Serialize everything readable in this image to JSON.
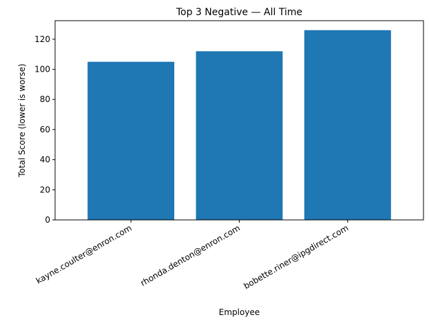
{
  "chart_data": {
    "type": "bar",
    "title": "Top 3 Negative — All Time",
    "xlabel": "Employee",
    "ylabel": "Total Score (lower is worse)",
    "categories": [
      "kayne.coulter@enron.com",
      "rhonda.denton@enron.com",
      "bobette.riner@ipgdirect.com"
    ],
    "values": [
      105,
      112,
      126
    ],
    "ylim": [
      0,
      132.3
    ],
    "yticks": [
      0,
      20,
      40,
      60,
      80,
      100,
      120
    ],
    "bar_color": "#1f77b4",
    "grid": false,
    "legend": "none"
  }
}
